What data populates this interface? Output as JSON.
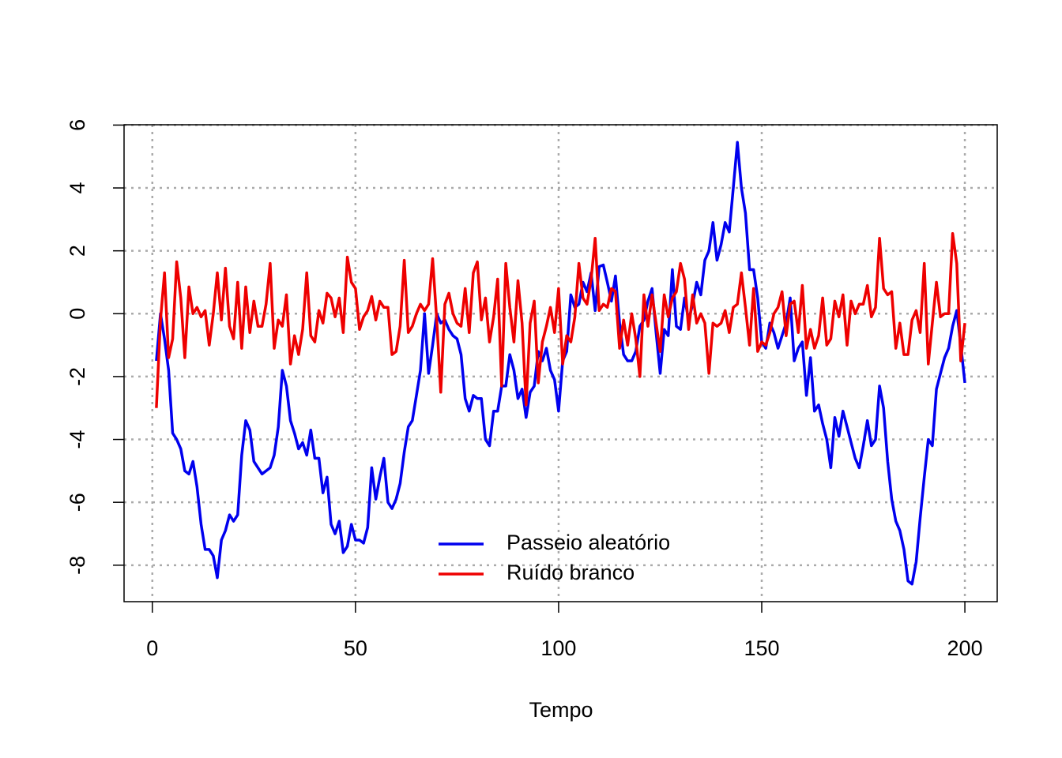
{
  "chart_data": {
    "type": "line",
    "xlabel": "Tempo",
    "x": [
      1,
      2,
      3,
      4,
      5,
      6,
      7,
      8,
      9,
      10,
      11,
      12,
      13,
      14,
      15,
      16,
      17,
      18,
      19,
      20,
      21,
      22,
      23,
      24,
      25,
      26,
      27,
      28,
      29,
      30,
      31,
      32,
      33,
      34,
      35,
      36,
      37,
      38,
      39,
      40,
      41,
      42,
      43,
      44,
      45,
      46,
      47,
      48,
      49,
      50,
      51,
      52,
      53,
      54,
      55,
      56,
      57,
      58,
      59,
      60,
      61,
      62,
      63,
      64,
      65,
      66,
      67,
      68,
      69,
      70,
      71,
      72,
      73,
      74,
      75,
      76,
      77,
      78,
      79,
      80,
      81,
      82,
      83,
      84,
      85,
      86,
      87,
      88,
      89,
      90,
      91,
      92,
      93,
      94,
      95,
      96,
      97,
      98,
      99,
      100,
      101,
      102,
      103,
      104,
      105,
      106,
      107,
      108,
      109,
      110,
      111,
      112,
      113,
      114,
      115,
      116,
      117,
      118,
      119,
      120,
      121,
      122,
      123,
      124,
      125,
      126,
      127,
      128,
      129,
      130,
      131,
      132,
      133,
      134,
      135,
      136,
      137,
      138,
      139,
      140,
      141,
      142,
      143,
      144,
      145,
      146,
      147,
      148,
      149,
      150,
      151,
      152,
      153,
      154,
      155,
      156,
      157,
      158,
      159,
      160,
      161,
      162,
      163,
      164,
      165,
      166,
      167,
      168,
      169,
      170,
      171,
      172,
      173,
      174,
      175,
      176,
      177,
      178,
      179,
      180,
      181,
      182,
      183,
      184,
      185,
      186,
      187,
      188,
      189,
      190,
      191,
      192,
      193,
      194,
      195,
      196,
      197,
      198,
      199,
      200
    ],
    "series": [
      {
        "name": "Passeio aleatório",
        "color": "#0000ee",
        "values": [
          -1.5,
          0,
          -0.8,
          -1.8,
          -3.8,
          -4.0,
          -4.3,
          -5.0,
          -5.1,
          -4.7,
          -5.5,
          -6.7,
          -7.5,
          -7.5,
          -7.7,
          -8.4,
          -7.2,
          -6.9,
          -6.4,
          -6.6,
          -6.4,
          -4.5,
          -3.4,
          -3.7,
          -4.7,
          -4.9,
          -5.1,
          -5.0,
          -4.9,
          -4.5,
          -3.6,
          -1.8,
          -2.3,
          -3.4,
          -3.8,
          -4.3,
          -4.1,
          -4.5,
          -3.7,
          -4.6,
          -4.6,
          -5.7,
          -5.2,
          -6.7,
          -7.0,
          -6.6,
          -7.6,
          -7.4,
          -6.7,
          -7.2,
          -7.2,
          -7.3,
          -6.8,
          -4.9,
          -5.9,
          -5.2,
          -4.6,
          -6.0,
          -6.2,
          -5.9,
          -5.4,
          -4.4,
          -3.6,
          -3.4,
          -2.6,
          -1.8,
          0.0,
          -1.9,
          -1.0,
          0.0,
          -0.3,
          -0.2,
          -0.5,
          -0.7,
          -0.8,
          -1.3,
          -2.7,
          -3.1,
          -2.6,
          -2.7,
          -2.7,
          -4.0,
          -4.2,
          -3.1,
          -3.1,
          -2.3,
          -2.3,
          -1.3,
          -1.8,
          -2.7,
          -2.4,
          -3.3,
          -2.5,
          -2.3,
          -1.2,
          -1.5,
          -1.1,
          -1.8,
          -2.1,
          -3.1,
          -1.5,
          -1.2,
          0.6,
          0.2,
          0.3,
          1.0,
          0.7,
          1.3,
          0.1,
          1.5,
          1.55,
          1.0,
          0.4,
          1.2,
          -0.3,
          -1.3,
          -1.5,
          -1.5,
          -1.2,
          -0.4,
          -0.2,
          0.4,
          0.8,
          -0.6,
          -1.9,
          -0.5,
          -0.7,
          1.4,
          -0.4,
          -0.5,
          0.5,
          -0.2,
          0.3,
          1.0,
          0.6,
          1.7,
          2.0,
          2.9,
          1.7,
          2.2,
          2.9,
          2.6,
          4.0,
          5.45,
          4.0,
          3.2,
          1.4,
          1.4,
          0.5,
          -0.9,
          -1.1,
          -0.3,
          -0.6,
          -1.1,
          -0.7,
          -0.3,
          0.5,
          -1.5,
          -1.1,
          -0.9,
          -2.6,
          -1.4,
          -3.1,
          -2.9,
          -3.5,
          -4.0,
          -4.9,
          -3.3,
          -3.9,
          -3.1,
          -3.6,
          -4.1,
          -4.6,
          -4.9,
          -4.2,
          -3.4,
          -4.2,
          -4.0,
          -2.3,
          -3.0,
          -4.7,
          -5.9,
          -6.6,
          -6.9,
          -7.5,
          -8.5,
          -8.6,
          -7.9,
          -6.5,
          -5.2,
          -4.0,
          -4.2,
          -2.4,
          -1.9,
          -1.4,
          -1.1,
          -0.4,
          0.1,
          -1.0,
          -2.2
        ]
      },
      {
        "name": "Ruído branco",
        "color": "#ee0000",
        "values": [
          -3.0,
          -0.2,
          1.3,
          -1.4,
          -0.8,
          1.65,
          0.5,
          -1.4,
          0.85,
          0.0,
          0.2,
          -0.1,
          0.1,
          -1.0,
          0.0,
          1.3,
          -0.2,
          1.45,
          -0.4,
          -0.8,
          1.0,
          -1.1,
          0.85,
          -0.6,
          0.4,
          -0.4,
          -0.4,
          0.3,
          1.6,
          -1.1,
          -0.2,
          -0.4,
          0.6,
          -1.6,
          -0.7,
          -1.3,
          -0.5,
          1.3,
          -0.7,
          -0.9,
          0.1,
          -0.3,
          0.65,
          0.5,
          -0.1,
          0.5,
          -0.6,
          1.8,
          1.0,
          0.8,
          -0.5,
          -0.1,
          0.1,
          0.55,
          -0.2,
          0.4,
          0.2,
          0.2,
          -1.3,
          -1.2,
          -0.4,
          1.7,
          -0.6,
          -0.4,
          0.0,
          0.3,
          0.1,
          0.3,
          1.75,
          -0.2,
          -2.5,
          0.3,
          0.65,
          0.0,
          -0.3,
          -0.4,
          0.8,
          -0.6,
          1.3,
          1.65,
          -0.2,
          0.5,
          -0.9,
          -0.1,
          1.1,
          -2.3,
          1.6,
          0.2,
          -0.9,
          1.05,
          -0.3,
          -2.9,
          -0.3,
          0.4,
          -2.2,
          -0.9,
          -0.4,
          0.2,
          -0.6,
          0.8,
          -1.6,
          -0.7,
          -0.9,
          -0.1,
          1.6,
          0.5,
          0.3,
          1.1,
          2.4,
          0.1,
          0.3,
          0.2,
          0.8,
          0.7,
          -1.1,
          -0.2,
          -1.0,
          0.0,
          -0.8,
          -2.0,
          0.6,
          -0.4,
          0.6,
          -0.3,
          -1.2,
          0.6,
          -0.1,
          0.5,
          0.7,
          1.6,
          1.1,
          -0.5,
          0.6,
          -0.3,
          0.0,
          -0.3,
          -1.9,
          -0.3,
          -0.4,
          -0.3,
          0.1,
          -0.6,
          0.2,
          0.3,
          1.3,
          0.2,
          -1.0,
          0.8,
          -1.2,
          -0.9,
          -1.0,
          -0.6,
          0.0,
          0.2,
          0.7,
          -0.7,
          0.3,
          0.4,
          -0.6,
          0.9,
          -1.1,
          -0.5,
          -1.1,
          -0.7,
          0.5,
          -1.0,
          -0.8,
          0.4,
          -0.1,
          0.6,
          -1.0,
          0.4,
          0.0,
          0.3,
          0.3,
          0.9,
          -0.1,
          0.2,
          2.4,
          0.8,
          0.6,
          0.7,
          -1.1,
          -0.3,
          -1.3,
          -1.3,
          -0.2,
          0.1,
          -0.6,
          1.6,
          -1.6,
          -0.3,
          1.0,
          -0.1,
          0.0,
          0.0,
          2.55,
          1.6,
          -1.5,
          -0.3
        ]
      }
    ],
    "xlim": [
      -6.96,
      207.96
    ],
    "ylim": [
      -9.16,
      6.01
    ],
    "xticks": [
      0,
      50,
      100,
      150,
      200
    ],
    "yticks": [
      -8,
      -6,
      -4,
      -2,
      0,
      2,
      4,
      6
    ],
    "grid": true,
    "legend": "bottom"
  }
}
